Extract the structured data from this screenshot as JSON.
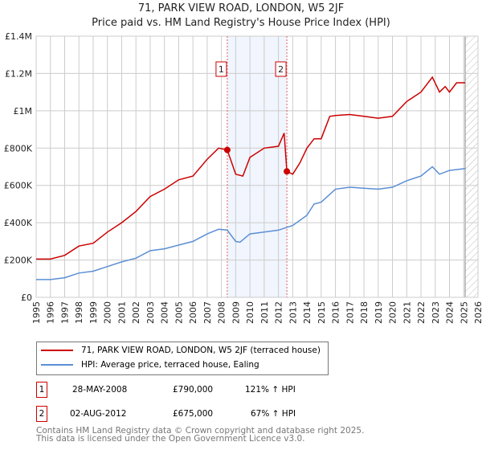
{
  "title": "71, PARK VIEW ROAD, LONDON, W5 2JF",
  "subtitle": "Price paid vs. HM Land Registry's House Price Index (HPI)",
  "chart_data": {
    "type": "line",
    "title": "71, PARK VIEW ROAD, LONDON, W5 2JF",
    "subtitle": "Price paid vs. HM Land Registry's House Price Index (HPI)",
    "xlim": [
      1995,
      2026
    ],
    "ylim": [
      0,
      1400000
    ],
    "grid": true,
    "x_ticks": [
      "1995",
      "1996",
      "1997",
      "1998",
      "1999",
      "2000",
      "2001",
      "2002",
      "2003",
      "2004",
      "2005",
      "2006",
      "2007",
      "2008",
      "2009",
      "2010",
      "2011",
      "2012",
      "2013",
      "2014",
      "2015",
      "2016",
      "2017",
      "2018",
      "2019",
      "2020",
      "2021",
      "2022",
      "2023",
      "2024",
      "2025",
      "2026"
    ],
    "y_ticks": [
      {
        "v": 0,
        "label": "£0"
      },
      {
        "v": 200000,
        "label": "£200K"
      },
      {
        "v": 400000,
        "label": "£400K"
      },
      {
        "v": 600000,
        "label": "£600K"
      },
      {
        "v": 800000,
        "label": "£800K"
      },
      {
        "v": 1000000,
        "label": "£1M"
      },
      {
        "v": 1200000,
        "label": "£1.2M"
      },
      {
        "v": 1400000,
        "label": "£1.4M"
      }
    ],
    "shaded_span": [
      2008.41,
      2012.59
    ],
    "future_hatch_from": 2025.1,
    "series": [
      {
        "name": "71, PARK VIEW ROAD, LONDON, W5 2JF (terraced house)",
        "color": "#cc0000",
        "x": [
          1995,
          1996,
          1997,
          1998,
          1999,
          2000,
          2001,
          2002,
          2003,
          2004,
          2005,
          2006,
          2007,
          2007.8,
          2008.41,
          2009,
          2009.5,
          2010,
          2011,
          2012,
          2012.4,
          2012.59,
          2013,
          2013.5,
          2014,
          2014.5,
          2015,
          2015.6,
          2016,
          2017,
          2018,
          2019,
          2020,
          2021,
          2022,
          2022.8,
          2023.3,
          2023.7,
          2024,
          2024.5,
          2025.1
        ],
        "y": [
          205000,
          205000,
          225000,
          275000,
          290000,
          350000,
          400000,
          460000,
          540000,
          580000,
          630000,
          650000,
          740000,
          800000,
          790000,
          660000,
          650000,
          750000,
          800000,
          810000,
          880000,
          675000,
          660000,
          720000,
          800000,
          850000,
          850000,
          970000,
          975000,
          980000,
          970000,
          960000,
          970000,
          1050000,
          1100000,
          1180000,
          1100000,
          1130000,
          1100000,
          1150000,
          1150000
        ]
      },
      {
        "name": "HPI: Average price, terraced house, Ealing",
        "color": "#5b8fd4",
        "x": [
          1995,
          1996,
          1997,
          1998,
          1999,
          2000,
          2001,
          2002,
          2003,
          2004,
          2005,
          2006,
          2007,
          2007.8,
          2008.41,
          2009,
          2009.3,
          2010,
          2011,
          2012,
          2012.59,
          2013,
          2014,
          2014.5,
          2015,
          2016,
          2017,
          2018,
          2019,
          2020,
          2021,
          2022,
          2022.8,
          2023.3,
          2024,
          2025.1
        ],
        "y": [
          95000,
          95000,
          105000,
          130000,
          140000,
          165000,
          190000,
          210000,
          250000,
          260000,
          280000,
          300000,
          340000,
          365000,
          360000,
          300000,
          295000,
          340000,
          350000,
          360000,
          375000,
          385000,
          440000,
          500000,
          510000,
          580000,
          590000,
          585000,
          580000,
          590000,
          625000,
          650000,
          700000,
          660000,
          680000,
          690000
        ]
      }
    ],
    "annotations": [
      {
        "label": "1",
        "x": 2008.41,
        "y": 790000
      },
      {
        "label": "2",
        "x": 2012.59,
        "y": 675000
      }
    ]
  },
  "legend": {
    "items": [
      {
        "label": "71, PARK VIEW ROAD, LONDON, W5 2JF (terraced house)",
        "color": "#cc0000"
      },
      {
        "label": "HPI: Average price, terraced house, Ealing",
        "color": "#5b8fd4"
      }
    ]
  },
  "transactions": [
    {
      "num": "1",
      "date": "28-MAY-2008",
      "price": "£790,000",
      "hpi": "121% ↑ HPI"
    },
    {
      "num": "2",
      "date": "02-AUG-2012",
      "price": "£675,000",
      "hpi": "67% ↑ HPI"
    }
  ],
  "footer": {
    "line1": "Contains HM Land Registry data © Crown copyright and database right 2025.",
    "line2": "This data is licensed under the Open Government Licence v3.0."
  }
}
